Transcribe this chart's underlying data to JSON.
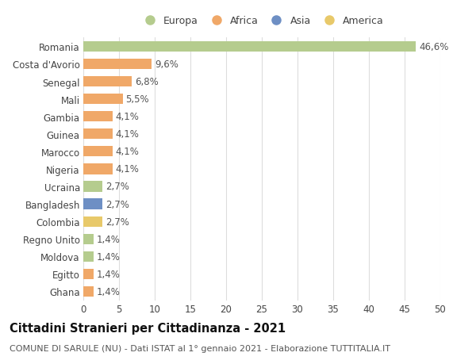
{
  "categories": [
    "Romania",
    "Costa d'Avorio",
    "Senegal",
    "Mali",
    "Gambia",
    "Guinea",
    "Marocco",
    "Nigeria",
    "Ucraina",
    "Bangladesh",
    "Colombia",
    "Regno Unito",
    "Moldova",
    "Egitto",
    "Ghana"
  ],
  "values": [
    46.6,
    9.6,
    6.8,
    5.5,
    4.1,
    4.1,
    4.1,
    4.1,
    2.7,
    2.7,
    2.7,
    1.4,
    1.4,
    1.4,
    1.4
  ],
  "labels": [
    "46,6%",
    "9,6%",
    "6,8%",
    "5,5%",
    "4,1%",
    "4,1%",
    "4,1%",
    "4,1%",
    "2,7%",
    "2,7%",
    "2,7%",
    "1,4%",
    "1,4%",
    "1,4%",
    "1,4%"
  ],
  "colors": [
    "#b5cc8e",
    "#f0a868",
    "#f0a868",
    "#f0a868",
    "#f0a868",
    "#f0a868",
    "#f0a868",
    "#f0a868",
    "#b5cc8e",
    "#6e8fc4",
    "#e8c96a",
    "#b5cc8e",
    "#b5cc8e",
    "#f0a868",
    "#f0a868"
  ],
  "legend": [
    {
      "label": "Europa",
      "color": "#b5cc8e"
    },
    {
      "label": "Africa",
      "color": "#f0a868"
    },
    {
      "label": "Asia",
      "color": "#6e8fc4"
    },
    {
      "label": "America",
      "color": "#e8c96a"
    }
  ],
  "xlim": [
    0,
    50
  ],
  "xticks": [
    0,
    5,
    10,
    15,
    20,
    25,
    30,
    35,
    40,
    45,
    50
  ],
  "title": "Cittadini Stranieri per Cittadinanza - 2021",
  "subtitle": "COMUNE DI SARULE (NU) - Dati ISTAT al 1° gennaio 2021 - Elaborazione TUTTITALIA.IT",
  "bar_height": 0.6,
  "background_color": "#ffffff",
  "grid_color": "#dddddd",
  "label_fontsize": 8.5,
  "tick_fontsize": 8.5,
  "title_fontsize": 10.5,
  "subtitle_fontsize": 8
}
